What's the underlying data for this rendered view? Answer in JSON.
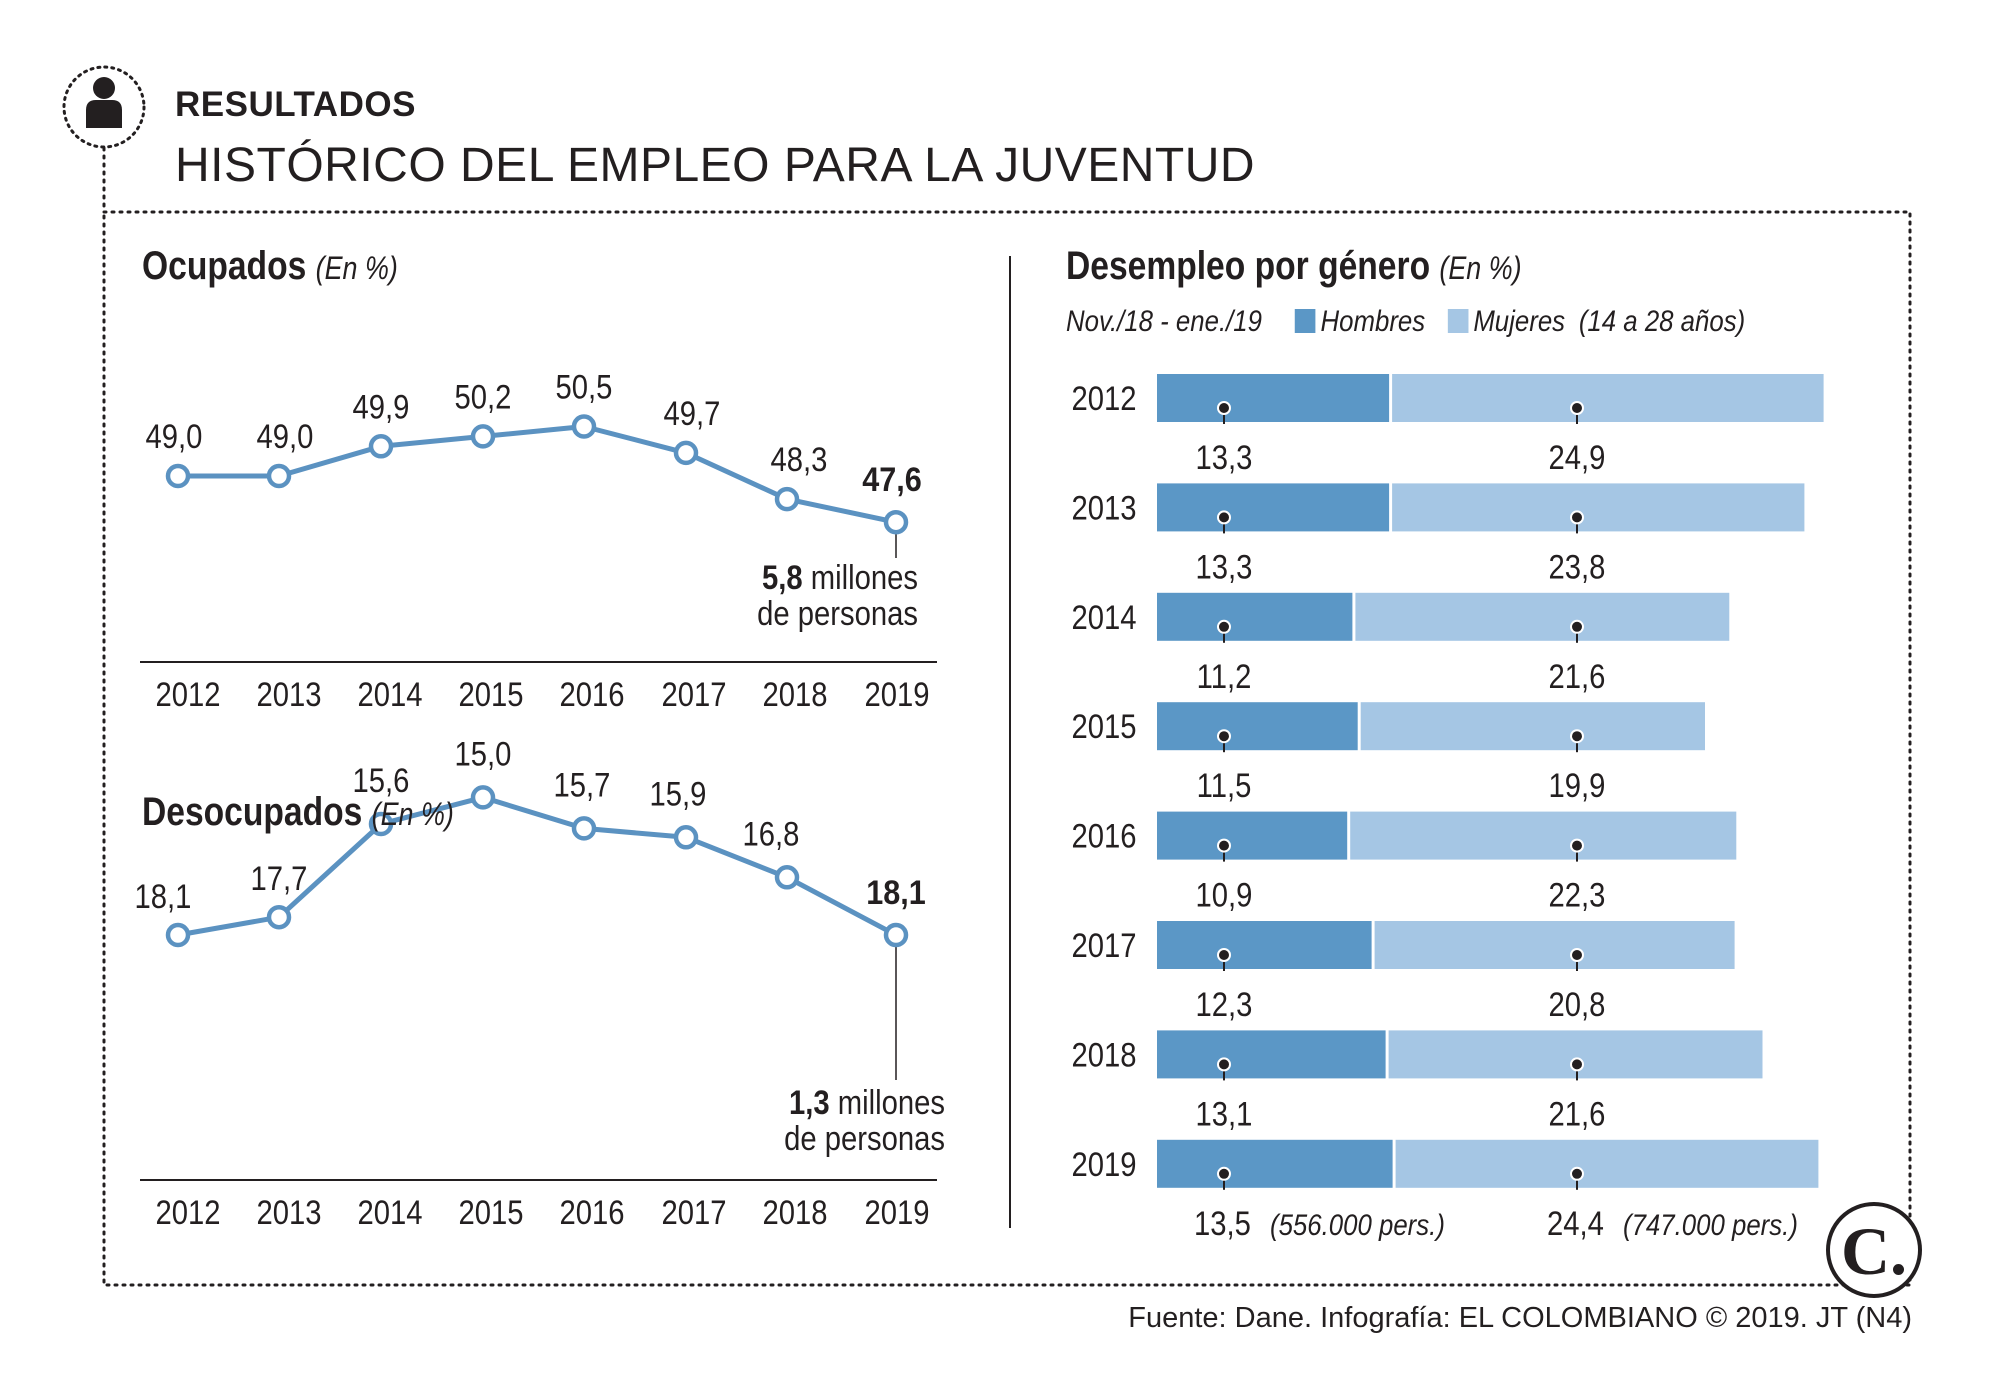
{
  "header": {
    "kicker": "RESULTADOS",
    "title": "HISTÓRICO DEL EMPLEO PARA LA JUVENTUD"
  },
  "footer": {
    "source": "Fuente: Dane. Infografía: EL COLOMBIANO © 2019. JT (N4)",
    "logo_letter": "C."
  },
  "colors": {
    "line": "#5b92c1",
    "hombres": "#5b97c6",
    "mujeres": "#a5c6e4",
    "ink": "#231f20"
  },
  "icons": {
    "person": "person-icon",
    "logo": "el-colombiano-logo"
  },
  "panels": {
    "ocupados": {
      "title": "Ocupados",
      "unit": "(En %)"
    },
    "desocupados": {
      "title": "Desocupados",
      "unit": "(En %)"
    },
    "genero": {
      "title": "Desempleo por género",
      "unit": "(En %)",
      "period": "Nov./18 - ene./19",
      "legend_hombres": "Hombres",
      "legend_mujeres": "Mujeres",
      "legend_note": "(14 a 28 años)"
    }
  },
  "chart_data": [
    {
      "type": "line",
      "title": "Ocupados",
      "unit": "(En %)",
      "x": [
        "2012",
        "2013",
        "2014",
        "2015",
        "2016",
        "2017",
        "2018",
        "2019"
      ],
      "values": [
        49.0,
        49.0,
        49.9,
        50.2,
        50.5,
        49.7,
        48.3,
        47.6
      ],
      "labels": [
        "49,0",
        "49,0",
        "49,9",
        "50,2",
        "50,5",
        "49,7",
        "48,3",
        "47,6"
      ],
      "highlight_index": 7,
      "annotation": {
        "bold": "5,8",
        "rest": " millones",
        "line2": "de personas"
      }
    },
    {
      "type": "line",
      "title": "Desocupados",
      "unit": "(En %)",
      "x": [
        "2012",
        "2013",
        "2014",
        "2015",
        "2016",
        "2017",
        "2018",
        "2019"
      ],
      "values": [
        18.1,
        17.7,
        15.6,
        15.0,
        15.7,
        15.9,
        16.8,
        18.1
      ],
      "labels": [
        "18,1",
        "17,7",
        "15,6",
        "15,0",
        "15,7",
        "15,9",
        "16,8",
        "18,1"
      ],
      "highlight_index": 7,
      "annotation": {
        "bold": "1,3",
        "rest": " millones",
        "line2": "de personas"
      }
    },
    {
      "type": "bar",
      "orientation": "horizontal",
      "stacked": true,
      "title": "Desempleo por género",
      "unit": "(En %)",
      "categories": [
        "2012",
        "2013",
        "2014",
        "2015",
        "2016",
        "2017",
        "2018",
        "2019"
      ],
      "series": [
        {
          "name": "Hombres",
          "values": [
            13.3,
            13.3,
            11.2,
            11.5,
            10.9,
            12.3,
            13.1,
            13.5
          ],
          "labels": [
            "13,3",
            "13,3",
            "11,2",
            "11,5",
            "10,9",
            "12,3",
            "13,1",
            "13,5"
          ]
        },
        {
          "name": "Mujeres",
          "values": [
            24.9,
            23.8,
            21.6,
            19.9,
            22.3,
            20.8,
            21.6,
            24.4
          ],
          "labels": [
            "24,9",
            "23,8",
            "21,6",
            "19,9",
            "22,3",
            "20,8",
            "21,6",
            "24,4"
          ]
        }
      ],
      "notes": {
        "hombres_2019": "(556.000 pers.)",
        "mujeres_2019": "(747.000 pers.)"
      }
    }
  ]
}
